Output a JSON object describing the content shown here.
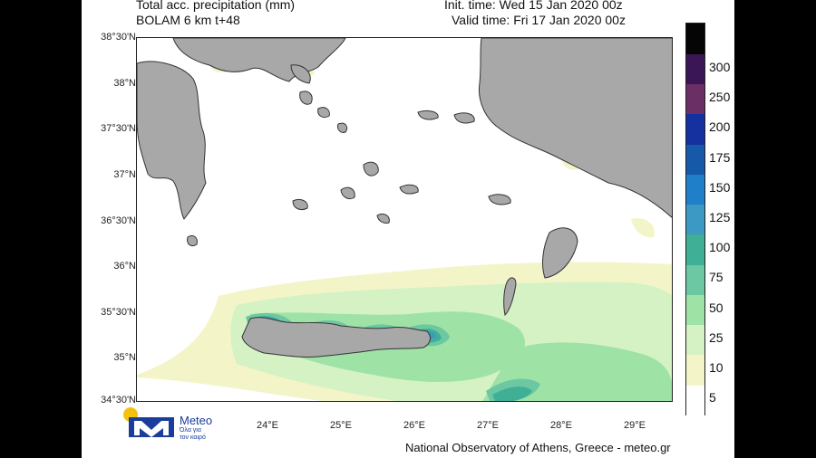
{
  "header": {
    "title_line1": "Total acc. precipitation (mm)",
    "title_line2": "BOLAM 6 km t+48",
    "init_time": "Init. time: Wed 15 Jan 2020 00z",
    "valid_time": "Valid time: Fri 17 Jan 2020 00z"
  },
  "map": {
    "lat_labels": [
      "38°30'N",
      "38°N",
      "37°30'N",
      "37°N",
      "36°30'N",
      "36°N",
      "35°30'N",
      "35°N",
      "34°30'N"
    ],
    "lon_labels": [
      "24°E",
      "25°E",
      "26°E",
      "27°E",
      "28°E",
      "29°E"
    ],
    "land_color": "#a8a8a8",
    "sea_color": "#ffffff"
  },
  "colorbar": {
    "levels": [
      {
        "label": "5",
        "color": "#ffffff"
      },
      {
        "label": "10",
        "color": "#f3f5c8"
      },
      {
        "label": "25",
        "color": "#d5f2c5"
      },
      {
        "label": "50",
        "color": "#9ee2a6"
      },
      {
        "label": "75",
        "color": "#6cc8a2"
      },
      {
        "label": "100",
        "color": "#3fb095"
      },
      {
        "label": "125",
        "color": "#3c99c3"
      },
      {
        "label": "150",
        "color": "#1f7fc8"
      },
      {
        "label": "175",
        "color": "#1659a8"
      },
      {
        "label": "200",
        "color": "#1531a0"
      },
      {
        "label": "250",
        "color": "#6a2f64"
      },
      {
        "label": "300",
        "color": "#3a1656"
      },
      {
        "label": "",
        "color": "#050505"
      }
    ]
  },
  "footer": {
    "credit": "National Observatory of Athens, Greece - meteo.gr"
  },
  "logo": {
    "name": "Meteo",
    "tagline_1": "Όλα για",
    "tagline_2": "τον καιρό"
  }
}
